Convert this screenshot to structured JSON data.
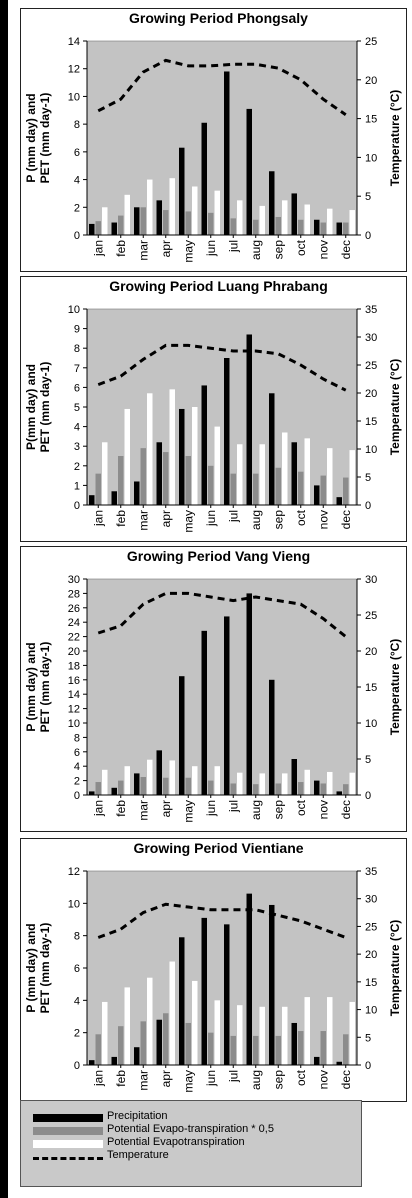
{
  "colors": {
    "plot_bg": "#c3c3c3",
    "precipitation": "#000000",
    "pet_half": "#8c8c8c",
    "pet": "#ffffff",
    "temperature": "#000000"
  },
  "legend": {
    "precipitation": "Precipitation",
    "pet_half": "Potential Evapo-transpiration * 0,5",
    "pet": "Potential Evapotranspiration",
    "temperature": "Temperature"
  },
  "chart_data": [
    {
      "type": "bar",
      "title": "Growing Period Phongsaly",
      "ylabel": "P (mm day) and PET (mm day-1)",
      "y2label": "Temperature (°C)",
      "categories": [
        "jan",
        "feb",
        "mar",
        "apr",
        "may",
        "jun",
        "jul",
        "aug",
        "sep",
        "oct",
        "nov",
        "dec"
      ],
      "ylim": [
        0,
        14
      ],
      "yticks": [
        0,
        2,
        4,
        6,
        8,
        10,
        12,
        14
      ],
      "y2lim": [
        0,
        25
      ],
      "y2ticks": [
        0,
        5,
        10,
        15,
        20,
        25
      ],
      "series": [
        {
          "name": "Precipitation",
          "values": [
            0.8,
            0.9,
            2.0,
            2.5,
            6.3,
            8.1,
            11.8,
            9.1,
            4.6,
            3.0,
            1.1,
            0.9
          ]
        },
        {
          "name": "Potential Evapo-transpiration * 0,5",
          "values": [
            1.0,
            1.4,
            2.0,
            1.8,
            1.7,
            1.6,
            1.2,
            1.1,
            1.3,
            1.1,
            0.9,
            0.9
          ]
        },
        {
          "name": "Potential Evapotranspiration",
          "values": [
            2.0,
            2.9,
            4.0,
            4.1,
            3.5,
            3.2,
            2.5,
            2.1,
            2.5,
            2.2,
            1.9,
            1.8
          ]
        },
        {
          "name": "Temperature",
          "values": [
            16,
            17.5,
            21,
            22.5,
            21.8,
            21.8,
            22,
            22,
            21.5,
            20,
            17.5,
            15.5
          ]
        }
      ]
    },
    {
      "type": "bar",
      "title": "Growing Period Luang Phrabang",
      "ylabel": "P(mm day) and PET (mm day-1)",
      "y2label": "Temperature (°C)",
      "categories": [
        "jan",
        "feb",
        "mar",
        "apr",
        "may",
        "jun",
        "jul",
        "aug",
        "sep",
        "oct",
        "nov",
        "dec"
      ],
      "ylim": [
        0,
        10
      ],
      "yticks": [
        0,
        1,
        2,
        3,
        4,
        5,
        6,
        7,
        8,
        9,
        10
      ],
      "y2lim": [
        0,
        35
      ],
      "y2ticks": [
        0,
        5,
        10,
        15,
        20,
        25,
        30,
        35
      ],
      "series": [
        {
          "name": "Precipitation",
          "values": [
            0.5,
            0.7,
            1.2,
            3.2,
            4.9,
            6.1,
            7.5,
            8.7,
            5.7,
            3.2,
            1.0,
            0.4
          ]
        },
        {
          "name": "Potential Evapo-transpiration * 0,5",
          "values": [
            1.6,
            2.5,
            2.9,
            2.7,
            2.5,
            2.0,
            1.6,
            1.6,
            1.9,
            1.7,
            1.5,
            1.4
          ]
        },
        {
          "name": "Potential Evapotranspiration",
          "values": [
            3.2,
            4.9,
            5.7,
            5.9,
            5.0,
            4.0,
            3.1,
            3.1,
            3.7,
            3.4,
            2.9,
            2.8
          ]
        },
        {
          "name": "Temperature",
          "values": [
            21.5,
            23,
            26,
            28.5,
            28.5,
            28,
            27.5,
            27.5,
            27,
            25,
            22.5,
            20.5
          ]
        }
      ]
    },
    {
      "type": "bar",
      "title": "Growing Period Vang Vieng",
      "ylabel": "P (mm day) and PET (mm day-1)",
      "y2label": "Temperature (°C)",
      "categories": [
        "jan",
        "feb",
        "mar",
        "apr",
        "may",
        "jun",
        "jul",
        "aug",
        "sep",
        "oct",
        "nov",
        "dec"
      ],
      "ylim": [
        0,
        30
      ],
      "yticks": [
        0,
        2,
        4,
        6,
        8,
        10,
        12,
        14,
        16,
        18,
        20,
        22,
        24,
        26,
        28,
        30
      ],
      "y2lim": [
        0,
        30
      ],
      "y2ticks": [
        0,
        5,
        10,
        15,
        20,
        25,
        30
      ],
      "series": [
        {
          "name": "Precipitation",
          "values": [
            0.5,
            1.0,
            3.0,
            6.2,
            16.5,
            22.8,
            24.8,
            28.0,
            16.0,
            5.0,
            2.0,
            0.5
          ]
        },
        {
          "name": "Potential Evapo-transpiration * 0,5",
          "values": [
            1.8,
            2.0,
            2.5,
            2.4,
            2.4,
            2.0,
            1.6,
            1.5,
            1.6,
            1.8,
            1.6,
            1.5
          ]
        },
        {
          "name": "Potential Evapotranspiration",
          "values": [
            3.5,
            4.0,
            4.9,
            4.8,
            4.0,
            4.0,
            3.1,
            3.0,
            3.0,
            3.5,
            3.2,
            3.1
          ]
        },
        {
          "name": "Temperature",
          "values": [
            22.5,
            23.5,
            26.5,
            28,
            28,
            27.5,
            27,
            27.5,
            27,
            26.5,
            24.5,
            22
          ]
        }
      ]
    },
    {
      "type": "bar",
      "title": "Growing Period Vientiane",
      "ylabel": "P (mm day) and PET (mm day-1)",
      "y2label": "Temperature (°C)",
      "categories": [
        "jan",
        "feb",
        "mar",
        "apr",
        "may",
        "jun",
        "jul",
        "aug",
        "sep",
        "oct",
        "nov",
        "dec"
      ],
      "ylim": [
        0,
        12
      ],
      "yticks": [
        0,
        2,
        4,
        6,
        8,
        10,
        12
      ],
      "y2lim": [
        0,
        35
      ],
      "y2ticks": [
        0,
        5,
        10,
        15,
        20,
        25,
        30,
        35
      ],
      "series": [
        {
          "name": "Precipitation",
          "values": [
            0.3,
            0.5,
            1.1,
            2.8,
            7.9,
            9.1,
            8.7,
            10.6,
            9.9,
            2.6,
            0.5,
            0.2
          ]
        },
        {
          "name": "Potential Evapo-transpiration * 0,5",
          "values": [
            1.9,
            2.4,
            2.7,
            3.2,
            2.6,
            2.0,
            1.8,
            1.8,
            1.8,
            2.1,
            2.1,
            1.9
          ]
        },
        {
          "name": "Potential Evapotranspiration",
          "values": [
            3.9,
            4.8,
            5.4,
            6.4,
            5.2,
            4.0,
            3.7,
            3.6,
            3.6,
            4.2,
            4.2,
            3.9
          ]
        },
        {
          "name": "Temperature",
          "values": [
            23,
            24.5,
            27.5,
            29,
            28.5,
            28,
            28,
            28,
            27,
            26,
            24.5,
            23
          ]
        }
      ]
    }
  ]
}
